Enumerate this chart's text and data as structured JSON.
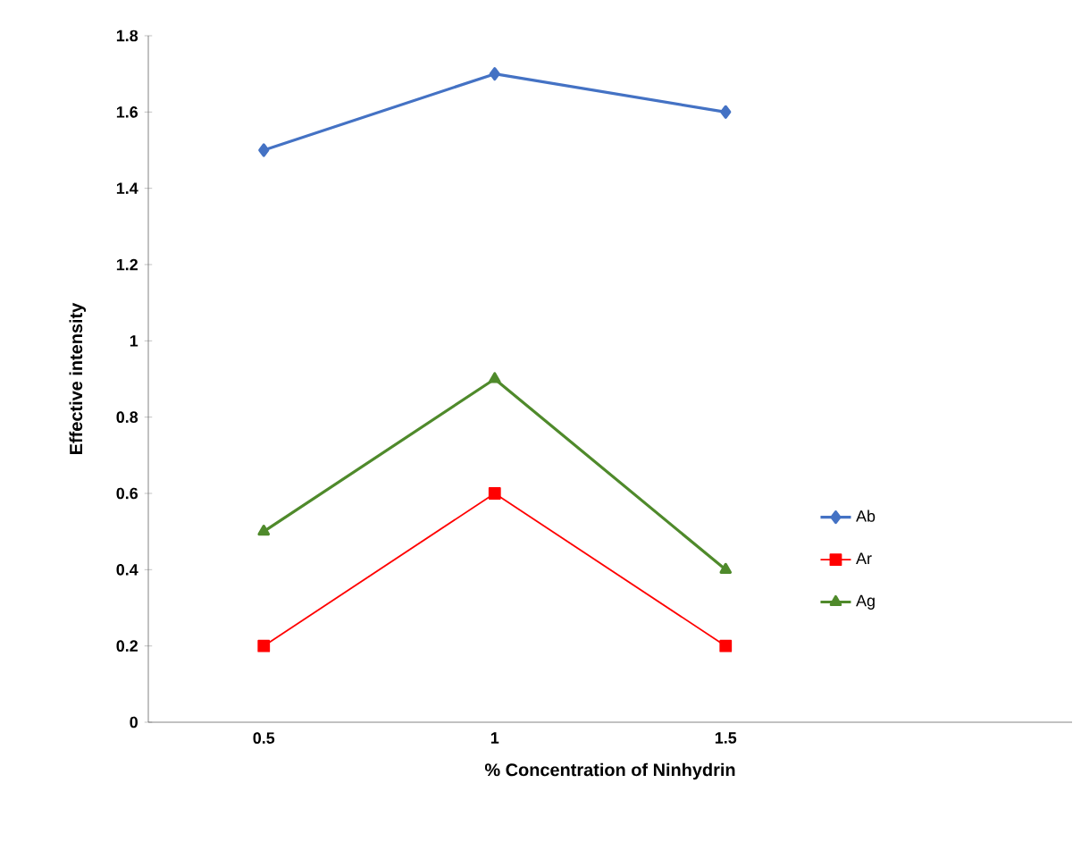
{
  "chart_data": {
    "type": "line",
    "xlabel": "% Concentration of Ninhydrin",
    "ylabel": "Effective intensity",
    "x": [
      0.5,
      1,
      1.5
    ],
    "xlim": [
      0.25,
      2.25
    ],
    "xticks": [
      0.5,
      1,
      1.5
    ],
    "ylim": [
      0,
      1.8
    ],
    "yticks": [
      0,
      0.2,
      0.4,
      0.6,
      0.8,
      1,
      1.2,
      1.4,
      1.6,
      1.8
    ],
    "grid": false,
    "legend": "right",
    "series": [
      {
        "name": "Ab",
        "color": "#4472c4",
        "marker": "diamond",
        "values": [
          1.5,
          1.7,
          1.6
        ]
      },
      {
        "name": "Ar",
        "color": "#ff0000",
        "marker": "square",
        "values": [
          0.2,
          0.6,
          0.2
        ]
      },
      {
        "name": "Ag",
        "color": "#4f8a2b",
        "marker": "triangle",
        "values": [
          0.5,
          0.9,
          0.4
        ]
      }
    ]
  }
}
